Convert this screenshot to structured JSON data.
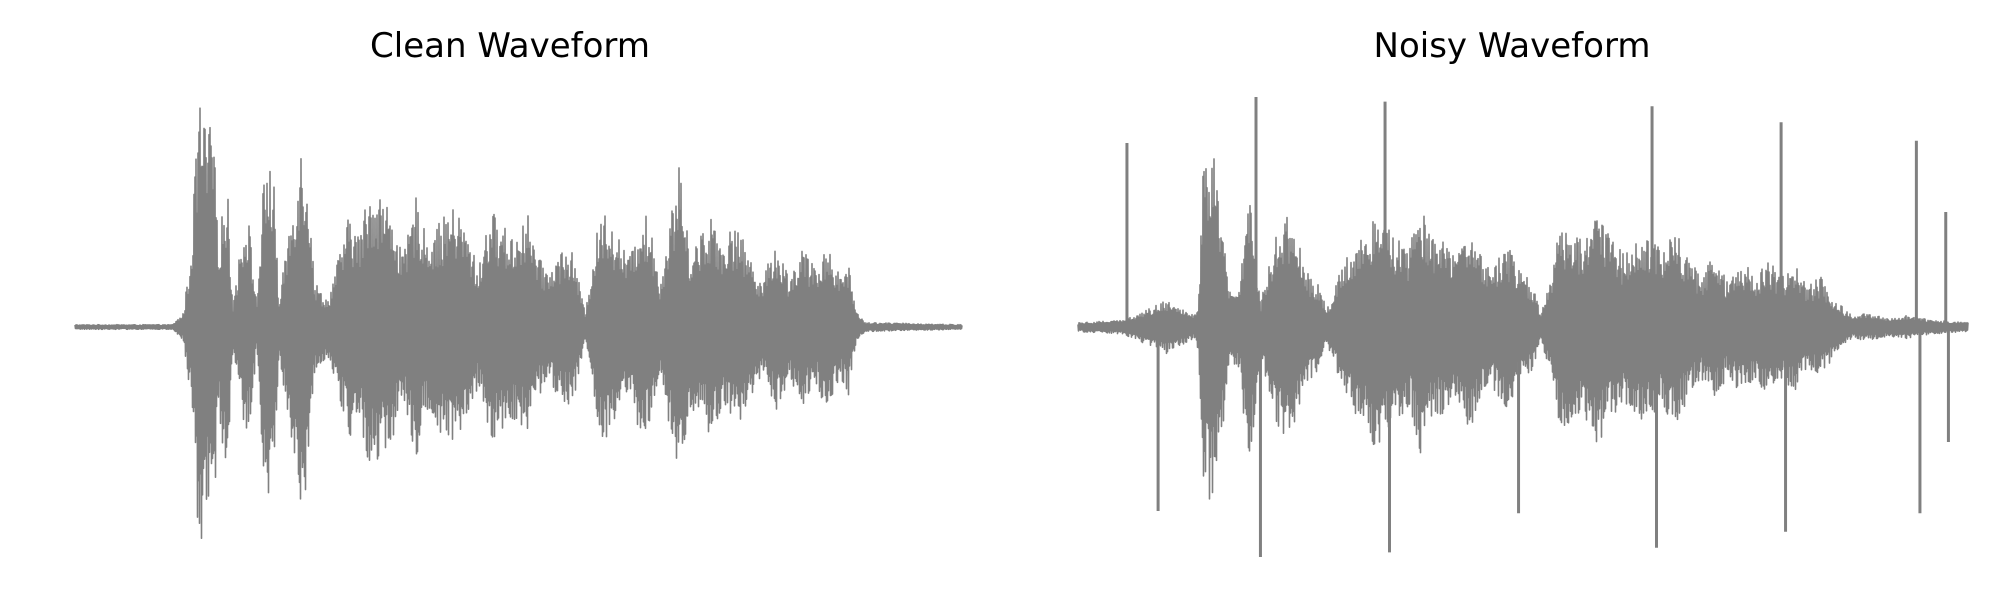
{
  "figure": {
    "line_color": "#808080",
    "background": "#ffffff",
    "axes_visible": false
  },
  "chart_data": [
    {
      "type": "line",
      "title": "Clean Waveform",
      "xlabel": "",
      "ylabel": "",
      "grid": false,
      "axes": "off",
      "color": "#808080",
      "envelope": [
        [
          0.0,
          0.01
        ],
        [
          0.11,
          0.01
        ],
        [
          0.122,
          0.06
        ],
        [
          0.13,
          0.3
        ],
        [
          0.135,
          0.65
        ],
        [
          0.14,
          1.0
        ],
        [
          0.148,
          0.85
        ],
        [
          0.155,
          0.9
        ],
        [
          0.162,
          0.4
        ],
        [
          0.168,
          0.55
        ],
        [
          0.172,
          0.6
        ],
        [
          0.178,
          0.1
        ],
        [
          0.19,
          0.45
        ],
        [
          0.195,
          0.5
        ],
        [
          0.205,
          0.1
        ],
        [
          0.212,
          0.6
        ],
        [
          0.218,
          0.75
        ],
        [
          0.225,
          0.6
        ],
        [
          0.23,
          0.1
        ],
        [
          0.24,
          0.4
        ],
        [
          0.255,
          0.8
        ],
        [
          0.262,
          0.7
        ],
        [
          0.27,
          0.2
        ],
        [
          0.285,
          0.12
        ],
        [
          0.3,
          0.35
        ],
        [
          0.31,
          0.5
        ],
        [
          0.32,
          0.4
        ],
        [
          0.33,
          0.58
        ],
        [
          0.34,
          0.62
        ],
        [
          0.35,
          0.55
        ],
        [
          0.36,
          0.48
        ],
        [
          0.37,
          0.3
        ],
        [
          0.385,
          0.58
        ],
        [
          0.395,
          0.4
        ],
        [
          0.41,
          0.45
        ],
        [
          0.425,
          0.52
        ],
        [
          0.435,
          0.48
        ],
        [
          0.445,
          0.38
        ],
        [
          0.455,
          0.25
        ],
        [
          0.468,
          0.52
        ],
        [
          0.48,
          0.45
        ],
        [
          0.495,
          0.4
        ],
        [
          0.51,
          0.5
        ],
        [
          0.522,
          0.3
        ],
        [
          0.535,
          0.25
        ],
        [
          0.55,
          0.35
        ],
        [
          0.562,
          0.32
        ],
        [
          0.575,
          0.06
        ],
        [
          0.59,
          0.45
        ],
        [
          0.6,
          0.52
        ],
        [
          0.612,
          0.4
        ],
        [
          0.625,
          0.3
        ],
        [
          0.64,
          0.52
        ],
        [
          0.65,
          0.42
        ],
        [
          0.66,
          0.2
        ],
        [
          0.672,
          0.5
        ],
        [
          0.682,
          0.72
        ],
        [
          0.692,
          0.35
        ],
        [
          0.705,
          0.4
        ],
        [
          0.718,
          0.5
        ],
        [
          0.73,
          0.38
        ],
        [
          0.745,
          0.45
        ],
        [
          0.76,
          0.32
        ],
        [
          0.775,
          0.2
        ],
        [
          0.79,
          0.38
        ],
        [
          0.805,
          0.22
        ],
        [
          0.82,
          0.35
        ],
        [
          0.835,
          0.25
        ],
        [
          0.85,
          0.38
        ],
        [
          0.862,
          0.22
        ],
        [
          0.872,
          0.3
        ],
        [
          0.88,
          0.08
        ],
        [
          0.89,
          0.02
        ],
        [
          1.0,
          0.01
        ]
      ],
      "ylim": [
        -1.0,
        1.0
      ]
    },
    {
      "type": "line",
      "title": "Noisy Waveform",
      "xlabel": "",
      "ylabel": "",
      "grid": false,
      "axes": "off",
      "color": "#808080",
      "envelope": [
        [
          0.0,
          0.02
        ],
        [
          0.05,
          0.03
        ],
        [
          0.08,
          0.08
        ],
        [
          0.1,
          0.12
        ],
        [
          0.115,
          0.09
        ],
        [
          0.13,
          0.05
        ],
        [
          0.135,
          0.1
        ],
        [
          0.14,
          0.65
        ],
        [
          0.148,
          0.8
        ],
        [
          0.155,
          0.7
        ],
        [
          0.162,
          0.5
        ],
        [
          0.17,
          0.15
        ],
        [
          0.182,
          0.2
        ],
        [
          0.192,
          0.65
        ],
        [
          0.198,
          0.4
        ],
        [
          0.205,
          0.1
        ],
        [
          0.215,
          0.3
        ],
        [
          0.225,
          0.45
        ],
        [
          0.24,
          0.5
        ],
        [
          0.255,
          0.25
        ],
        [
          0.268,
          0.2
        ],
        [
          0.28,
          0.08
        ],
        [
          0.3,
          0.3
        ],
        [
          0.315,
          0.4
        ],
        [
          0.325,
          0.42
        ],
        [
          0.335,
          0.55
        ],
        [
          0.345,
          0.45
        ],
        [
          0.358,
          0.4
        ],
        [
          0.372,
          0.35
        ],
        [
          0.385,
          0.55
        ],
        [
          0.395,
          0.4
        ],
        [
          0.41,
          0.38
        ],
        [
          0.425,
          0.3
        ],
        [
          0.44,
          0.45
        ],
        [
          0.452,
          0.32
        ],
        [
          0.465,
          0.25
        ],
        [
          0.48,
          0.38
        ],
        [
          0.495,
          0.25
        ],
        [
          0.51,
          0.2
        ],
        [
          0.52,
          0.05
        ],
        [
          0.53,
          0.2
        ],
        [
          0.542,
          0.45
        ],
        [
          0.555,
          0.42
        ],
        [
          0.568,
          0.38
        ],
        [
          0.585,
          0.52
        ],
        [
          0.6,
          0.4
        ],
        [
          0.612,
          0.32
        ],
        [
          0.625,
          0.38
        ],
        [
          0.64,
          0.42
        ],
        [
          0.655,
          0.35
        ],
        [
          0.672,
          0.42
        ],
        [
          0.688,
          0.3
        ],
        [
          0.7,
          0.22
        ],
        [
          0.715,
          0.35
        ],
        [
          0.73,
          0.2
        ],
        [
          0.745,
          0.3
        ],
        [
          0.76,
          0.22
        ],
        [
          0.775,
          0.3
        ],
        [
          0.79,
          0.22
        ],
        [
          0.805,
          0.28
        ],
        [
          0.818,
          0.18
        ],
        [
          0.835,
          0.22
        ],
        [
          0.85,
          0.12
        ],
        [
          0.87,
          0.05
        ],
        [
          0.89,
          0.06
        ],
        [
          0.91,
          0.04
        ],
        [
          0.93,
          0.05
        ],
        [
          0.96,
          0.03
        ],
        [
          1.0,
          0.02
        ]
      ],
      "impulses": [
        {
          "x": 0.055,
          "y": 0.8
        },
        {
          "x": 0.09,
          "y": -0.8
        },
        {
          "x": 0.2,
          "y": 1.0
        },
        {
          "x": 0.205,
          "y": -1.0
        },
        {
          "x": 0.345,
          "y": 0.98
        },
        {
          "x": 0.35,
          "y": -0.98
        },
        {
          "x": 0.495,
          "y": -0.81
        },
        {
          "x": 0.645,
          "y": 0.96
        },
        {
          "x": 0.65,
          "y": -0.96
        },
        {
          "x": 0.79,
          "y": 0.89
        },
        {
          "x": 0.795,
          "y": -0.89
        },
        {
          "x": 0.942,
          "y": 0.81
        },
        {
          "x": 0.946,
          "y": -0.81
        },
        {
          "x": 0.975,
          "y": 0.5
        },
        {
          "x": 0.978,
          "y": -0.5
        }
      ],
      "ylim": [
        -1.0,
        1.0
      ]
    }
  ]
}
